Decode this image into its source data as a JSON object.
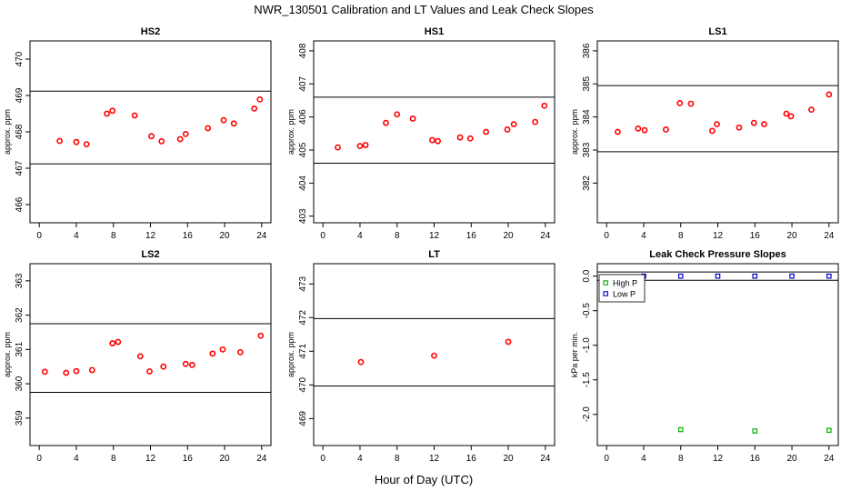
{
  "figure": {
    "title": "NWR_130501  Calibration and LT Values and Leak Check Slopes",
    "xlabel": "Hour of Day (UTC)"
  },
  "colors": {
    "ambient": "#ff0000",
    "high_p": "#00b000",
    "low_p": "#0000cc",
    "axis": "#000000"
  },
  "chart_data": [
    {
      "type": "scatter",
      "title": "HS2",
      "ylabel": "approx. ppm",
      "xlim": [
        -1,
        25
      ],
      "ylim": [
        465.5,
        470.5
      ],
      "xticks": [
        0,
        4,
        8,
        12,
        16,
        20,
        24
      ],
      "yticks": [
        466,
        467,
        468,
        469,
        470
      ],
      "hlines": [
        467.12,
        469.12
      ],
      "series": [
        {
          "marker": "circle",
          "color": "#ff0000",
          "x": [
            2.2,
            4.0,
            5.1,
            7.3,
            7.9,
            10.3,
            12.1,
            13.2,
            15.2,
            15.8,
            18.2,
            19.9,
            21.0,
            23.2,
            23.8
          ],
          "y": [
            467.75,
            467.72,
            467.66,
            468.5,
            468.58,
            468.45,
            467.88,
            467.74,
            467.8,
            467.94,
            468.1,
            468.32,
            468.23,
            468.64,
            468.89
          ]
        }
      ]
    },
    {
      "type": "scatter",
      "title": "HS1",
      "ylabel": "approx. ppm",
      "xlim": [
        -1,
        25
      ],
      "ylim": [
        402.8,
        408.3
      ],
      "xticks": [
        0,
        4,
        8,
        12,
        16,
        20,
        24
      ],
      "yticks": [
        403,
        404,
        405,
        406,
        407,
        408
      ],
      "hlines": [
        404.6,
        406.6
      ],
      "series": [
        {
          "marker": "circle",
          "color": "#ff0000",
          "x": [
            1.6,
            4.0,
            4.6,
            6.8,
            8.0,
            9.7,
            11.8,
            12.4,
            14.8,
            15.9,
            17.6,
            19.9,
            20.6,
            22.9,
            23.9
          ],
          "y": [
            405.08,
            405.12,
            405.15,
            405.82,
            406.08,
            405.95,
            405.3,
            405.27,
            405.38,
            405.35,
            405.55,
            405.62,
            405.78,
            405.85,
            406.34
          ]
        }
      ]
    },
    {
      "type": "scatter",
      "title": "LS1",
      "ylabel": "approx. ppm",
      "xlim": [
        -1,
        25
      ],
      "ylim": [
        380.8,
        386.3
      ],
      "xticks": [
        0,
        4,
        8,
        12,
        16,
        20,
        24
      ],
      "yticks": [
        382,
        383,
        384,
        385,
        386
      ],
      "hlines": [
        382.95,
        384.95
      ],
      "series": [
        {
          "marker": "circle",
          "color": "#ff0000",
          "x": [
            1.2,
            3.4,
            4.1,
            6.4,
            7.9,
            9.1,
            11.4,
            11.9,
            14.3,
            15.9,
            17.0,
            19.4,
            19.9,
            22.1,
            24.0
          ],
          "y": [
            383.55,
            383.65,
            383.6,
            383.62,
            384.42,
            384.4,
            383.58,
            383.78,
            383.68,
            383.82,
            383.78,
            384.1,
            384.02,
            384.22,
            384.68
          ]
        }
      ]
    },
    {
      "type": "scatter",
      "title": "LS2",
      "ylabel": "approx. ppm",
      "xlim": [
        -1,
        25
      ],
      "ylim": [
        358.2,
        363.5
      ],
      "xticks": [
        0,
        4,
        8,
        12,
        16,
        20,
        24
      ],
      "yticks": [
        359,
        360,
        361,
        362,
        363
      ],
      "hlines": [
        359.75,
        361.75
      ],
      "series": [
        {
          "marker": "circle",
          "color": "#ff0000",
          "x": [
            0.6,
            2.9,
            4.0,
            5.7,
            7.9,
            8.5,
            10.9,
            11.9,
            13.4,
            15.8,
            16.5,
            18.7,
            19.8,
            21.7,
            23.9
          ],
          "y": [
            360.35,
            360.32,
            360.37,
            360.4,
            361.18,
            361.22,
            360.8,
            360.36,
            360.5,
            360.58,
            360.55,
            360.88,
            361.0,
            360.92,
            361.4
          ]
        }
      ]
    },
    {
      "type": "scatter",
      "title": "LT",
      "ylabel": "approx. ppm",
      "xlim": [
        -1,
        25
      ],
      "ylim": [
        468.2,
        473.6
      ],
      "xticks": [
        0,
        4,
        8,
        12,
        16,
        20,
        24
      ],
      "yticks": [
        469,
        470,
        471,
        472,
        473
      ],
      "hlines": [
        469.97,
        471.97
      ],
      "series": [
        {
          "marker": "circle",
          "color": "#ff0000",
          "x": [
            4.1,
            12.0,
            20.0
          ],
          "y": [
            470.68,
            470.87,
            471.28
          ]
        }
      ]
    },
    {
      "type": "scatter",
      "title": "Leak Check Pressure Slopes",
      "ylabel": "kPa per min.",
      "xlim": [
        -1,
        25
      ],
      "ylim": [
        -2.45,
        0.18
      ],
      "xticks": [
        0,
        4,
        8,
        12,
        16,
        20,
        24
      ],
      "yticks": [
        -2.0,
        -1.5,
        -1.0,
        -0.5,
        0.0
      ],
      "ytick_labels": [
        "-2.0",
        "-1.5",
        "-1.0",
        "-0.5",
        "0.0"
      ],
      "hlines": [
        0.06,
        -0.06
      ],
      "legend": {
        "position": "top-left",
        "entries": [
          "High P",
          "Low P"
        ]
      },
      "series": [
        {
          "name": "High P",
          "marker": "square",
          "color": "#00b000",
          "x": [
            8.0,
            16.0,
            24.0
          ],
          "y": [
            -2.22,
            -2.24,
            -2.23
          ]
        },
        {
          "name": "Low P",
          "marker": "square",
          "color": "#0000cc",
          "x": [
            4.0,
            8.0,
            12.0,
            16.0,
            20.0,
            24.0
          ],
          "y": [
            0.0,
            0.0,
            0.0,
            0.0,
            0.0,
            0.0
          ]
        }
      ]
    }
  ]
}
